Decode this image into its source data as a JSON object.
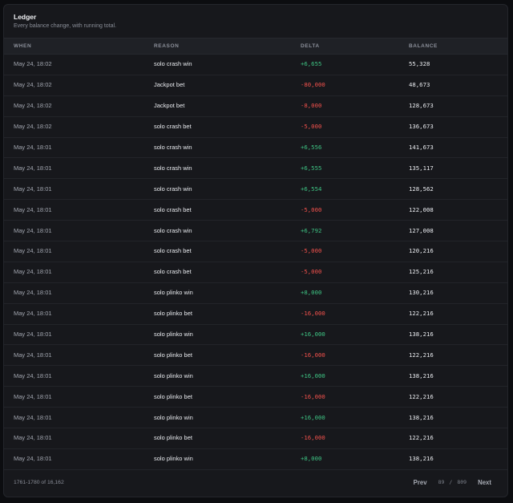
{
  "header": {
    "title": "Ledger",
    "subtitle": "Every balance change, with running total."
  },
  "columns": {
    "when": "WHEN",
    "reason": "REASON",
    "delta": "DELTA",
    "balance": "BALANCE"
  },
  "rows": [
    {
      "when": "May 24, 18:02",
      "reason": "solo crash win",
      "delta": "+6,655",
      "sign": "pos",
      "balance": "55,328"
    },
    {
      "when": "May 24, 18:02",
      "reason": "Jackpot bet",
      "delta": "-80,000",
      "sign": "neg",
      "balance": "48,673"
    },
    {
      "when": "May 24, 18:02",
      "reason": "Jackpot bet",
      "delta": "-8,000",
      "sign": "neg",
      "balance": "128,673"
    },
    {
      "when": "May 24, 18:02",
      "reason": "solo crash bet",
      "delta": "-5,000",
      "sign": "neg",
      "balance": "136,673"
    },
    {
      "when": "May 24, 18:01",
      "reason": "solo crash win",
      "delta": "+6,556",
      "sign": "pos",
      "balance": "141,673"
    },
    {
      "when": "May 24, 18:01",
      "reason": "solo crash win",
      "delta": "+6,555",
      "sign": "pos",
      "balance": "135,117"
    },
    {
      "when": "May 24, 18:01",
      "reason": "solo crash win",
      "delta": "+6,554",
      "sign": "pos",
      "balance": "128,562"
    },
    {
      "when": "May 24, 18:01",
      "reason": "solo crash bet",
      "delta": "-5,000",
      "sign": "neg",
      "balance": "122,008"
    },
    {
      "when": "May 24, 18:01",
      "reason": "solo crash win",
      "delta": "+6,792",
      "sign": "pos",
      "balance": "127,008"
    },
    {
      "when": "May 24, 18:01",
      "reason": "solo crash bet",
      "delta": "-5,000",
      "sign": "neg",
      "balance": "120,216"
    },
    {
      "when": "May 24, 18:01",
      "reason": "solo crash bet",
      "delta": "-5,000",
      "sign": "neg",
      "balance": "125,216"
    },
    {
      "when": "May 24, 18:01",
      "reason": "solo plinko win",
      "delta": "+8,000",
      "sign": "pos",
      "balance": "130,216"
    },
    {
      "when": "May 24, 18:01",
      "reason": "solo plinko bet",
      "delta": "-16,000",
      "sign": "neg",
      "balance": "122,216"
    },
    {
      "when": "May 24, 18:01",
      "reason": "solo plinko win",
      "delta": "+16,000",
      "sign": "pos",
      "balance": "138,216"
    },
    {
      "when": "May 24, 18:01",
      "reason": "solo plinko bet",
      "delta": "-16,000",
      "sign": "neg",
      "balance": "122,216"
    },
    {
      "when": "May 24, 18:01",
      "reason": "solo plinko win",
      "delta": "+16,000",
      "sign": "pos",
      "balance": "138,216"
    },
    {
      "when": "May 24, 18:01",
      "reason": "solo plinko bet",
      "delta": "-16,000",
      "sign": "neg",
      "balance": "122,216"
    },
    {
      "when": "May 24, 18:01",
      "reason": "solo plinko win",
      "delta": "+16,000",
      "sign": "pos",
      "balance": "138,216"
    },
    {
      "when": "May 24, 18:01",
      "reason": "solo plinko bet",
      "delta": "-16,000",
      "sign": "neg",
      "balance": "122,216"
    },
    {
      "when": "May 24, 18:01",
      "reason": "solo plinko win",
      "delta": "+8,000",
      "sign": "pos",
      "balance": "138,216"
    }
  ],
  "footer": {
    "range": "1761-1780 of 16,162",
    "prev_label": "Prev",
    "next_label": "Next",
    "page_current": "89",
    "page_separator": "/",
    "page_total": "809"
  },
  "colors": {
    "positive": "#3ec383",
    "negative": "#f0514c",
    "background": "#17181c",
    "header_row": "#1f2126"
  }
}
